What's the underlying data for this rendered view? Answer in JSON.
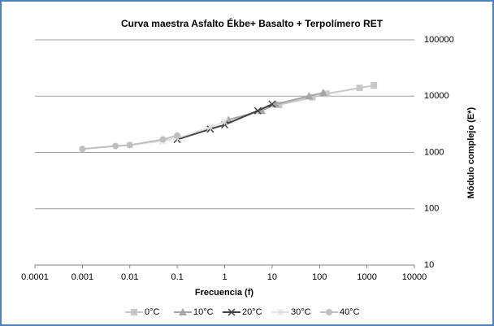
{
  "chart_data": {
    "type": "line",
    "title": "Curva maestra Asfalto Ékbe+ Basalto + Terpolímero RET",
    "x_label": "Frecuencia (f)",
    "y_label": "Módulo complejo (E*)",
    "xscale": "log",
    "yscale": "log",
    "xlim": [
      0.0001,
      10000
    ],
    "xticks": [
      0.0001,
      0.001,
      0.01,
      0.1,
      1,
      10,
      100,
      1000,
      10000
    ],
    "ylim": [
      10,
      100000
    ],
    "yticks": [
      10,
      100,
      1000,
      10000,
      100000
    ],
    "y_axis_side": "right",
    "grid": true,
    "legend": "bottom",
    "series": [
      {
        "name": "0°C",
        "color": "#c8c8c8",
        "marker": "square",
        "x": [
          14,
          70,
          140,
          700,
          1400
        ],
        "values": [
          7000,
          9500,
          11000,
          14000,
          15500
        ]
      },
      {
        "name": "10°C",
        "color": "#a6a6a6",
        "marker": "triangle",
        "x": [
          1.2,
          6,
          12,
          60,
          120
        ],
        "values": [
          3800,
          5500,
          7200,
          10000,
          11500
        ]
      },
      {
        "name": "20°C",
        "color": "#404040",
        "marker": "x",
        "x": [
          0.1,
          0.5,
          1,
          5,
          10
        ],
        "values": [
          1700,
          2600,
          3100,
          5500,
          7200
        ]
      },
      {
        "name": "30°C",
        "color": "#e0e0e0",
        "marker": "star",
        "x": [
          0.01,
          0.05,
          0.1,
          0.5,
          1
        ],
        "values": [
          1350,
          1600,
          1800,
          2800,
          3500
        ]
      },
      {
        "name": "40°C",
        "color": "#bfbfbf",
        "marker": "circle",
        "x": [
          0.001,
          0.005,
          0.01,
          0.05,
          0.1
        ],
        "values": [
          1150,
          1300,
          1350,
          1700,
          2000
        ]
      }
    ]
  }
}
